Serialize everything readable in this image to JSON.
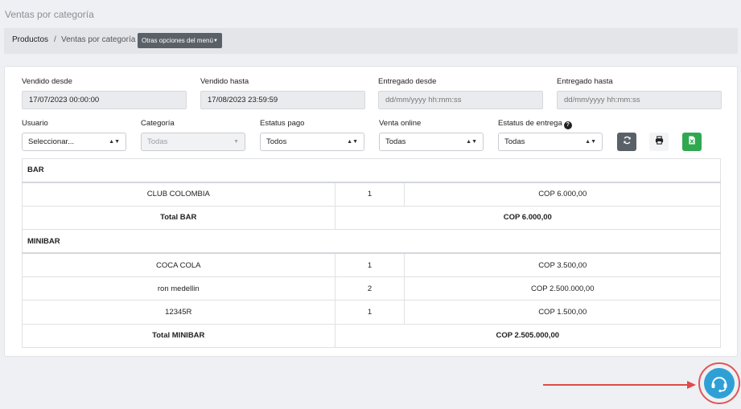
{
  "page": {
    "title": "Ventas por categoría"
  },
  "breadcrumb": {
    "parent": "Productos",
    "separator": "/",
    "current": "Ventas por categoría",
    "menu_button": "Otras opciones del menú"
  },
  "filters": {
    "vendido_desde": {
      "label": "Vendido desde",
      "value": "17/07/2023 00:00:00"
    },
    "vendido_hasta": {
      "label": "Vendido hasta",
      "value": "17/08/2023 23:59:59"
    },
    "entregado_desde": {
      "label": "Entregado desde",
      "placeholder": "dd/mm/yyyy hh:mm:ss"
    },
    "entregado_hasta": {
      "label": "Entregado hasta",
      "placeholder": "dd/mm/yyyy hh:mm:ss"
    },
    "usuario": {
      "label": "Usuario",
      "value": "Seleccionar..."
    },
    "categoria": {
      "label": "Categoría",
      "value": "Todas"
    },
    "estatus_pago": {
      "label": "Estatus pago",
      "value": "Todos"
    },
    "venta_online": {
      "label": "Venta online",
      "value": "Todas"
    },
    "estatus_entrega": {
      "label": "Estatus de entrega",
      "value": "Todas"
    }
  },
  "report": {
    "groups": [
      {
        "name": "BAR",
        "rows": [
          {
            "product": "CLUB COLOMBIA",
            "qty": "1",
            "amount": "COP 6.000,00"
          }
        ],
        "total_label": "Total BAR",
        "total_amount": "COP 6.000,00"
      },
      {
        "name": "MINIBAR",
        "rows": [
          {
            "product": "COCA COLA",
            "qty": "1",
            "amount": "COP 3.500,00"
          },
          {
            "product": "ron medellin",
            "qty": "2",
            "amount": "COP 2.500.000,00"
          },
          {
            "product": "12345R",
            "qty": "1",
            "amount": "COP 1.500,00"
          }
        ],
        "total_label": "Total MINIBAR",
        "total_amount": "COP 2.505.000,00"
      }
    ]
  },
  "colors": {
    "accent_support": "#2fa0d6",
    "annotation_red": "#e04a4a",
    "excel_green": "#2fa84f",
    "dark_button": "#5a6068"
  }
}
